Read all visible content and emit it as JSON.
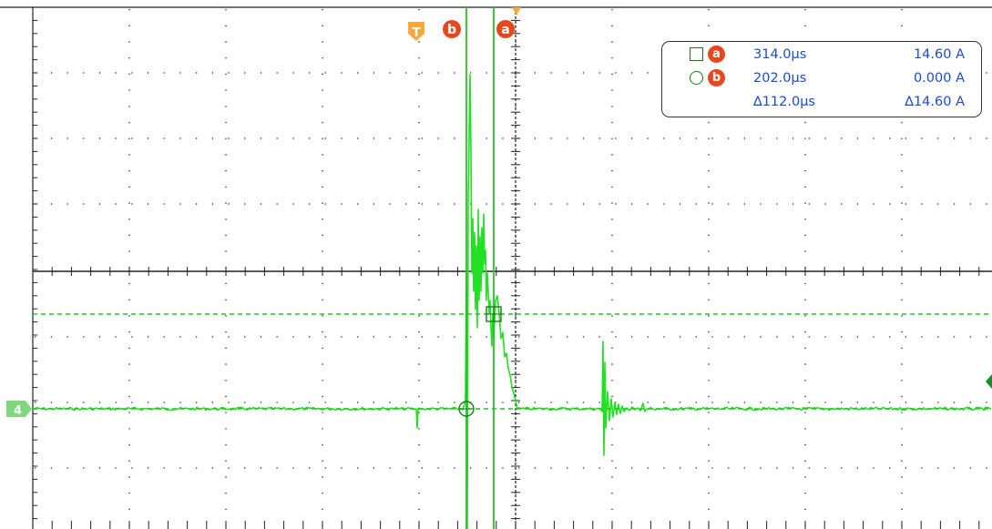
{
  "colors": {
    "trace": "#22e022",
    "cursor": "#22c422",
    "grid": "#222222",
    "trigger_marker": "#f5a83c",
    "cursor_marker": "#e8461c",
    "readout_text": "#1a4bd1",
    "channel_badge": "#7ed87e"
  },
  "markers": {
    "trigger": {
      "label": "T",
      "icon": "trigger-marker-icon"
    },
    "cursor_b": {
      "label": "b",
      "icon": "cursor-b-marker-icon"
    },
    "cursor_a": {
      "label": "a",
      "icon": "cursor-a-marker-icon"
    }
  },
  "channel": {
    "label": "4"
  },
  "readout": {
    "cursor_a": {
      "shape": "square",
      "label": "a",
      "time": "314.0µs",
      "value": "14.60 A"
    },
    "cursor_b": {
      "shape": "circle",
      "label": "b",
      "time": "202.0µs",
      "value": "0.000 A"
    },
    "delta": {
      "time": "∆112.0µs",
      "value": "∆14.60 A"
    }
  }
}
